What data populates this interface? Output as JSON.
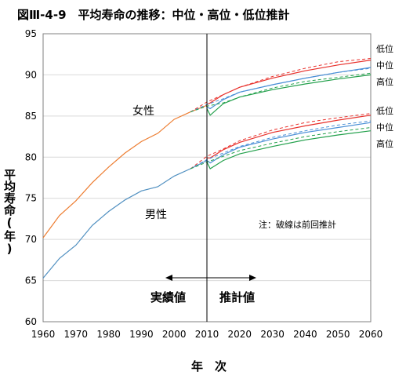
{
  "chart_data": {
    "type": "line",
    "title": "図Ⅲ-4-9　平均寿命の推移：中位・高位・低位推計",
    "xlabel": "年　次",
    "ylabel": "平均寿命(年)",
    "xlim": [
      1960,
      2060
    ],
    "ylim": [
      60,
      95
    ],
    "xticks": [
      1960,
      1970,
      1980,
      1990,
      2000,
      2010,
      2020,
      2030,
      2040,
      2050,
      2060
    ],
    "yticks": [
      60,
      65,
      70,
      75,
      80,
      85,
      90,
      95
    ],
    "grid": "horizontal",
    "divider_year": 2010,
    "annotations": {
      "female": "女性",
      "male": "男性",
      "note": "注：破線は前回推計",
      "actual": "実績値",
      "projected": "推計値"
    },
    "series": [
      {
        "name": "女性",
        "style": "solid",
        "color": "#ED7D31",
        "x": [
          1960,
          1965,
          1970,
          1975,
          1980,
          1985,
          1990,
          1995,
          2000,
          2005,
          2010
        ],
        "y": [
          70.2,
          72.9,
          74.7,
          76.9,
          78.8,
          80.5,
          81.9,
          82.9,
          84.6,
          85.5,
          86.3
        ]
      },
      {
        "name": "男性",
        "style": "solid",
        "color": "#4F8FC0",
        "x": [
          1960,
          1965,
          1970,
          1975,
          1980,
          1985,
          1990,
          1995,
          2000,
          2005,
          2010
        ],
        "y": [
          65.3,
          67.7,
          69.3,
          71.7,
          73.4,
          74.8,
          75.9,
          76.4,
          77.7,
          78.6,
          79.6
        ]
      },
      {
        "name": "低位",
        "group": "女性",
        "style": "solid",
        "color": "#E8302B",
        "x": [
          2010,
          2011,
          2015,
          2020,
          2030,
          2040,
          2050,
          2060
        ],
        "y": [
          86.4,
          86.6,
          87.6,
          88.5,
          89.6,
          90.5,
          91.2,
          91.8
        ]
      },
      {
        "name": "中位",
        "group": "女性",
        "style": "solid",
        "color": "#4A8FD6",
        "x": [
          2010,
          2011,
          2015,
          2020,
          2030,
          2040,
          2050,
          2060
        ],
        "y": [
          86.1,
          85.9,
          87.0,
          87.9,
          88.8,
          89.6,
          90.3,
          90.9
        ]
      },
      {
        "name": "高位",
        "group": "女性",
        "style": "solid",
        "color": "#22A04B",
        "x": [
          2010,
          2011,
          2015,
          2020,
          2030,
          2040,
          2050,
          2060
        ],
        "y": [
          85.9,
          85.1,
          86.5,
          87.3,
          88.2,
          88.9,
          89.5,
          90.0
        ]
      },
      {
        "name": "低位",
        "group": "男性",
        "style": "solid",
        "color": "#E8302B",
        "x": [
          2010,
          2011,
          2015,
          2020,
          2030,
          2040,
          2050,
          2060
        ],
        "y": [
          79.9,
          79.9,
          80.9,
          81.8,
          83.0,
          83.8,
          84.5,
          85.1
        ]
      },
      {
        "name": "中位",
        "group": "男性",
        "style": "solid",
        "color": "#4A8FD6",
        "x": [
          2010,
          2011,
          2015,
          2020,
          2030,
          2040,
          2050,
          2060
        ],
        "y": [
          79.6,
          79.3,
          80.3,
          81.2,
          82.2,
          83.0,
          83.6,
          84.2
        ]
      },
      {
        "name": "高位",
        "group": "男性",
        "style": "solid",
        "color": "#22A04B",
        "x": [
          2010,
          2011,
          2015,
          2020,
          2030,
          2040,
          2050,
          2060
        ],
        "y": [
          79.4,
          78.6,
          79.6,
          80.4,
          81.3,
          82.1,
          82.7,
          83.2
        ]
      },
      {
        "name": "前回推計 低位",
        "group": "女性",
        "style": "dashed",
        "color": "#E8302B",
        "x": [
          2005,
          2010,
          2015,
          2020,
          2030,
          2040,
          2050,
          2060
        ],
        "y": [
          85.5,
          86.7,
          87.6,
          88.5,
          89.8,
          90.8,
          91.6,
          92.0
        ]
      },
      {
        "name": "前回推計 中位",
        "group": "女性",
        "style": "dashed",
        "color": "#4A8FD6",
        "x": [
          2005,
          2010,
          2015,
          2020,
          2030,
          2040,
          2050,
          2060
        ],
        "y": [
          85.5,
          86.4,
          87.1,
          87.9,
          88.8,
          89.6,
          90.3,
          90.8
        ]
      },
      {
        "name": "前回推計 高位",
        "group": "女性",
        "style": "dashed",
        "color": "#22A04B",
        "x": [
          2005,
          2010,
          2015,
          2020,
          2030,
          2040,
          2050,
          2060
        ],
        "y": [
          85.5,
          86.2,
          86.6,
          87.3,
          88.4,
          89.2,
          89.7,
          90.2
        ]
      },
      {
        "name": "前回推計 低位",
        "group": "男性",
        "style": "dashed",
        "color": "#E8302B",
        "x": [
          2005,
          2010,
          2015,
          2020,
          2030,
          2040,
          2050,
          2060
        ],
        "y": [
          78.6,
          80.1,
          81.0,
          82.0,
          83.3,
          84.2,
          84.8,
          85.3
        ]
      },
      {
        "name": "前回推計 中位",
        "group": "男性",
        "style": "dashed",
        "color": "#4A8FD6",
        "x": [
          2005,
          2010,
          2015,
          2020,
          2030,
          2040,
          2050,
          2060
        ],
        "y": [
          78.6,
          79.7,
          80.5,
          81.3,
          82.4,
          83.2,
          83.9,
          84.4
        ]
      },
      {
        "name": "前回推計 高位",
        "group": "男性",
        "style": "dashed",
        "color": "#22A04B",
        "x": [
          2005,
          2010,
          2015,
          2020,
          2030,
          2040,
          2050,
          2060
        ],
        "y": [
          78.6,
          79.4,
          80.1,
          80.8,
          81.7,
          82.5,
          83.1,
          83.6
        ]
      }
    ],
    "projection_labels": {
      "女性": [
        "低位",
        "中位",
        "高位"
      ],
      "男性": [
        "低位",
        "中位",
        "高位"
      ]
    }
  }
}
